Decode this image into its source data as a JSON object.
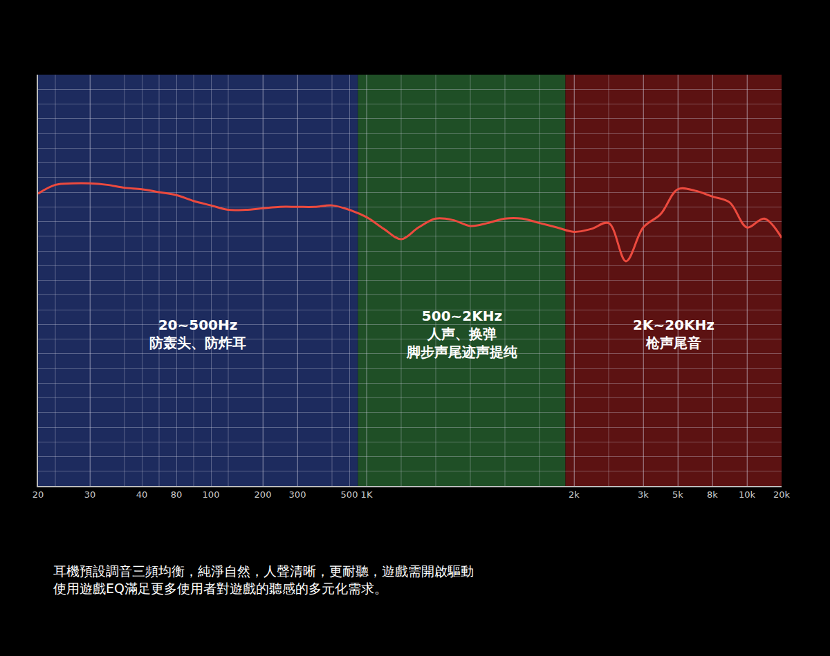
{
  "chart_data": {
    "type": "line",
    "categories": [
      "20",
      null,
      null,
      "30",
      null,
      null,
      "40",
      null,
      "80",
      null,
      "100",
      null,
      null,
      "200",
      null,
      "300",
      null,
      null,
      "500",
      "1K",
      null,
      null,
      null,
      null,
      null,
      null,
      null,
      null,
      null,
      null,
      null,
      "2k",
      null,
      null,
      null,
      "3k",
      null,
      "5k",
      null,
      "8k",
      null,
      "10k",
      null,
      "20k"
    ],
    "values": [
      19.9,
      20.5,
      20.6,
      20.6,
      20.5,
      20.3,
      20.2,
      20.0,
      19.8,
      19.4,
      19.1,
      18.8,
      18.8,
      18.9,
      19.0,
      19.0,
      19.0,
      19.1,
      18.8,
      18.3,
      17.5,
      16.8,
      17.6,
      18.2,
      18.1,
      17.7,
      17.9,
      18.2,
      18.2,
      17.9,
      17.6,
      17.3,
      17.5,
      17.9,
      15.3,
      17.6,
      18.5,
      20.2,
      20.1,
      19.7,
      19.3,
      17.6,
      18.2,
      16.9
    ],
    "color": "#ec4a3e",
    "ylim": [
      0,
      28
    ],
    "yticks": [
      0,
      1,
      2,
      3,
      4,
      5,
      6,
      7,
      8,
      9,
      10,
      11,
      12,
      13,
      14,
      15,
      16,
      17,
      18,
      19,
      20,
      21,
      22,
      23,
      24,
      25,
      26,
      27,
      28
    ],
    "tick_labels": "x",
    "grid": true,
    "bands": [
      {
        "from": "20",
        "label": "20~500Hz",
        "text": [
          "防轰头、防炸耳"
        ],
        "color": "#1d2b5e"
      },
      {
        "from": "1K",
        "label": "500~2KHz",
        "text": [
          "人声、换弹",
          "脚步声尾迹声提纯"
        ],
        "color": "#1f4f26"
      },
      {
        "from": "2k",
        "label": "2K~20KHz",
        "text": [
          "枪声尾音"
        ],
        "color": "#5c1212"
      }
    ],
    "caption": [
      "耳機預設調音三頻均衡，純淨自然，人聲清晰，更耐聽，遊戲需開啟驅動",
      "使用遊戲EQ滿足更多使用者對遊戲的聽感的多元化需求。"
    ]
  }
}
